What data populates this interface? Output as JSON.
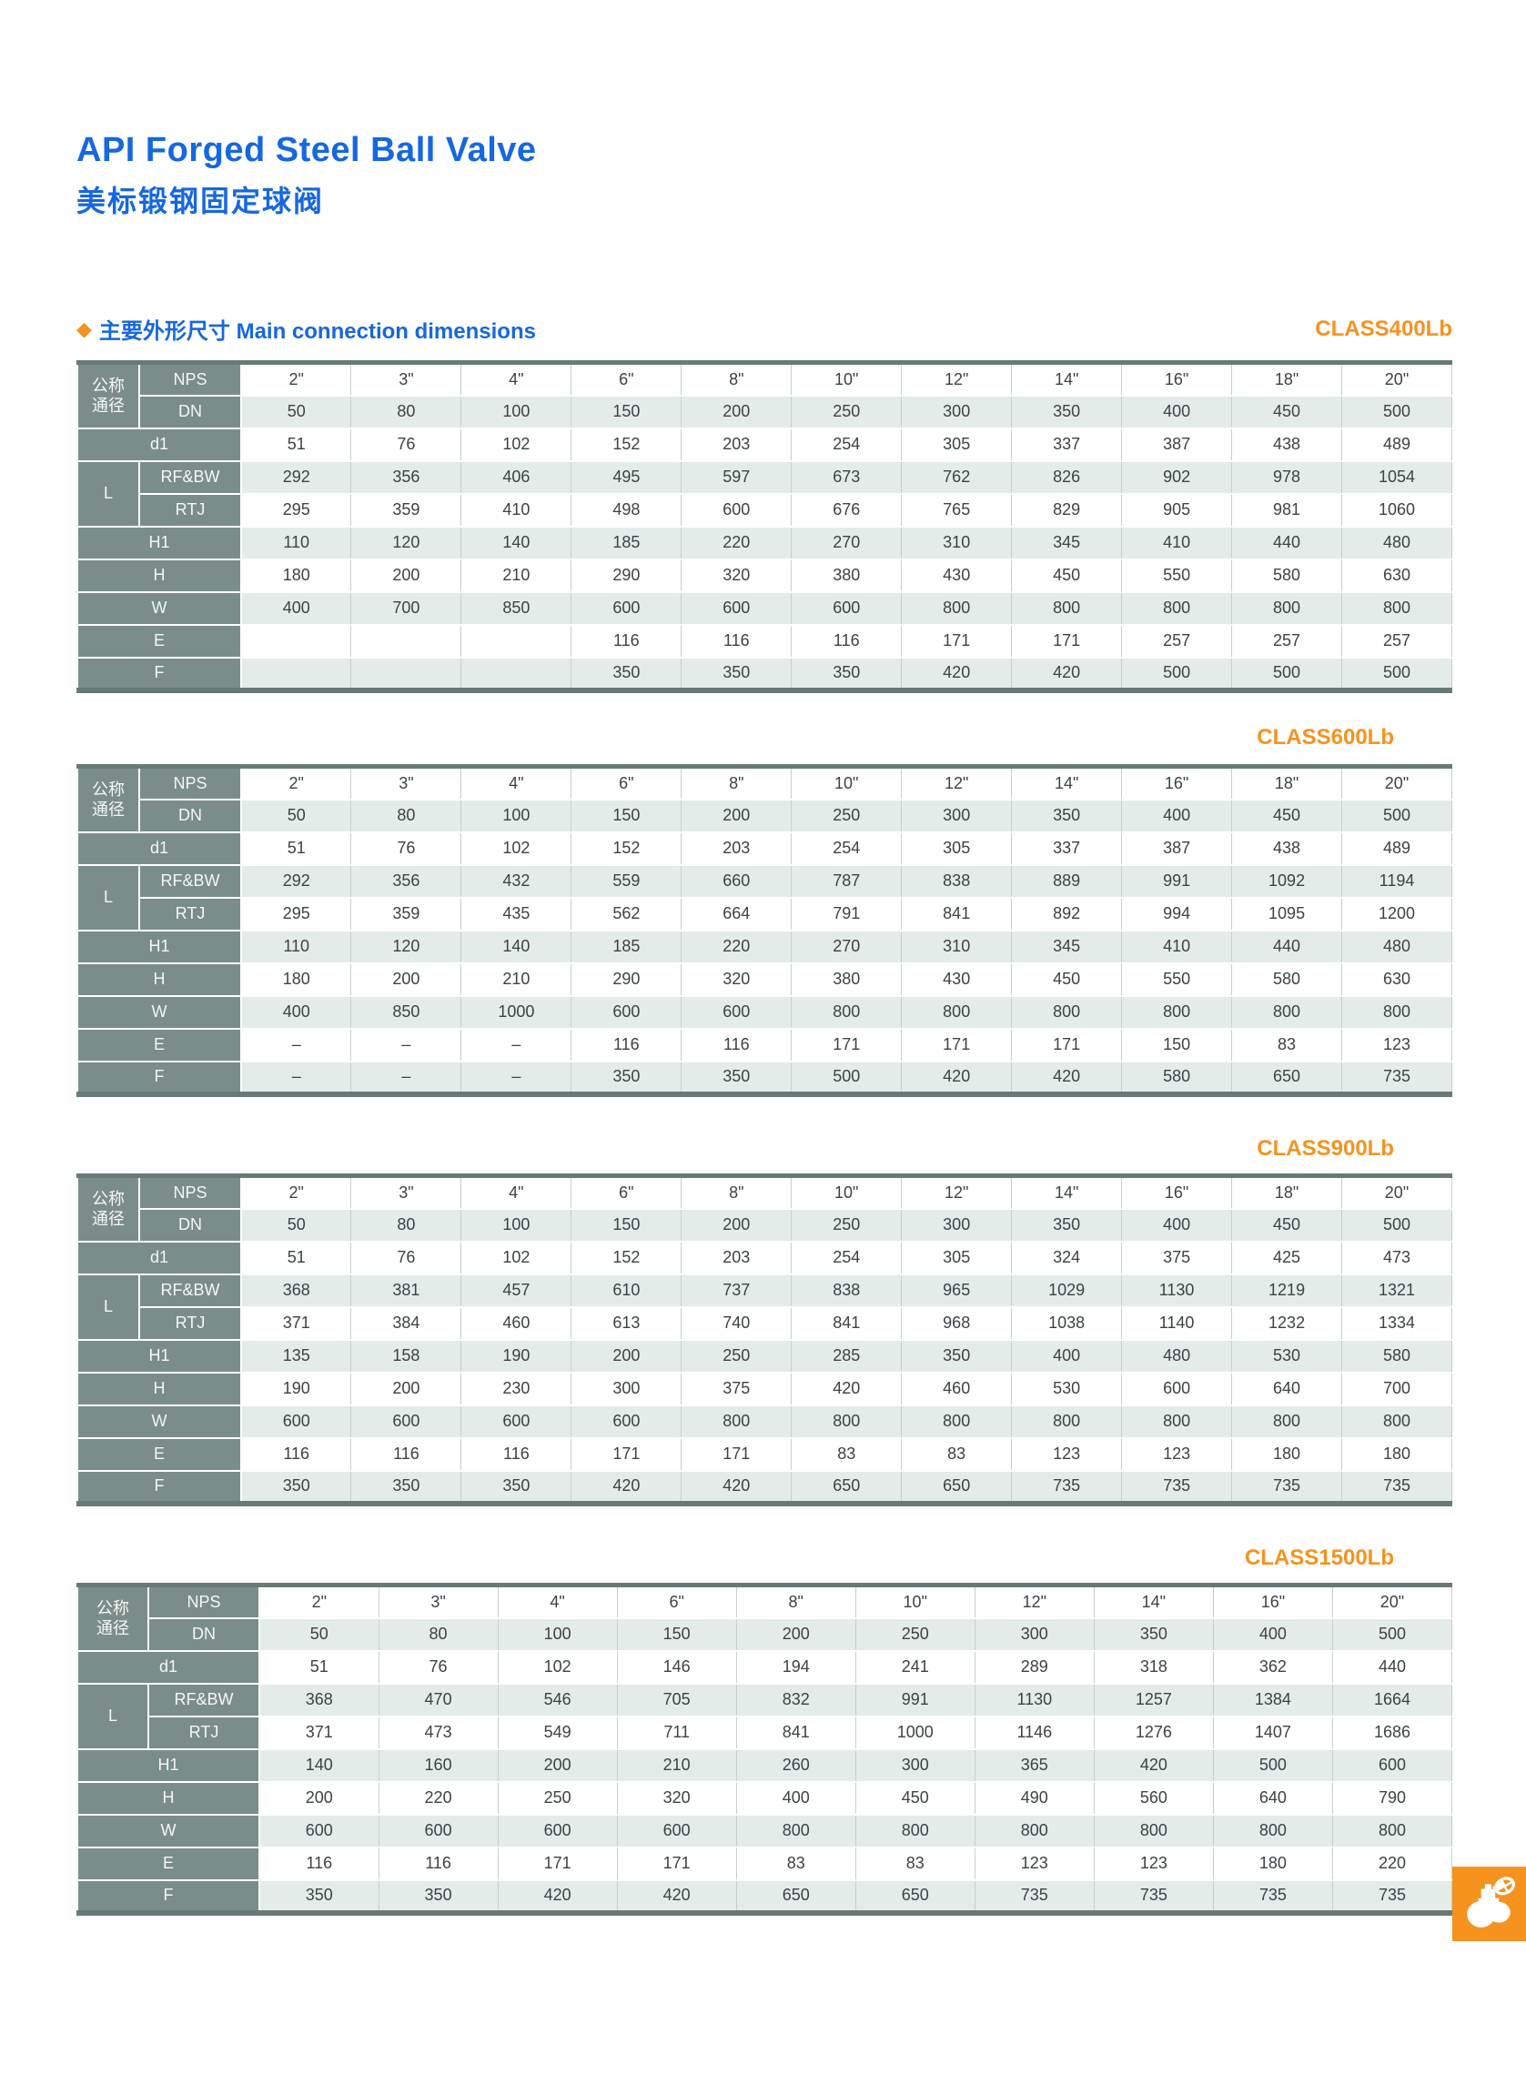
{
  "page": {
    "title_en": "API Forged Steel Ball Valve",
    "title_zh": "美标锻钢固定球阀"
  },
  "section": {
    "bullet": "◆",
    "heading": "主要外形尺寸 Main connection dimensions"
  },
  "row_labels": {
    "size_group": "公称\n通径",
    "nps": "NPS",
    "dn": "DN",
    "d1": "d1",
    "l": "L",
    "rf_bw": "RF&BW",
    "rtj": "RTJ",
    "h1": "H1",
    "h": "H",
    "w": "W",
    "e": "E",
    "f": "F"
  },
  "colors": {
    "accent_blue": "#1567e2",
    "accent_orange": "#f6921e",
    "label_cell": "#7b8d89",
    "row_tint": "#e4ecea",
    "table_edge": "#687a77"
  },
  "icon": {
    "name": "ball-valve-icon"
  },
  "tables": [
    {
      "class_label": "CLASS400Lb",
      "nps": [
        "2\"",
        "3\"",
        "4\"",
        "6\"",
        "8\"",
        "10\"",
        "12\"",
        "14\"",
        "16\"",
        "18\"",
        "20\""
      ],
      "dn": [
        "50",
        "80",
        "100",
        "150",
        "200",
        "250",
        "300",
        "350",
        "400",
        "450",
        "500"
      ],
      "d1": [
        "51",
        "76",
        "102",
        "152",
        "203",
        "254",
        "305",
        "337",
        "387",
        "438",
        "489"
      ],
      "rf_bw": [
        "292",
        "356",
        "406",
        "495",
        "597",
        "673",
        "762",
        "826",
        "902",
        "978",
        "1054"
      ],
      "rtj": [
        "295",
        "359",
        "410",
        "498",
        "600",
        "676",
        "765",
        "829",
        "905",
        "981",
        "1060"
      ],
      "h1": [
        "110",
        "120",
        "140",
        "185",
        "220",
        "270",
        "310",
        "345",
        "410",
        "440",
        "480"
      ],
      "h": [
        "180",
        "200",
        "210",
        "290",
        "320",
        "380",
        "430",
        "450",
        "550",
        "580",
        "630"
      ],
      "w": [
        "400",
        "700",
        "850",
        "600",
        "600",
        "600",
        "800",
        "800",
        "800",
        "800",
        "800"
      ],
      "e": [
        "",
        "",
        "",
        "116",
        "116",
        "116",
        "171",
        "171",
        "257",
        "257",
        "257"
      ],
      "f": [
        "",
        "",
        "",
        "350",
        "350",
        "350",
        "420",
        "420",
        "500",
        "500",
        "500"
      ]
    },
    {
      "class_label": "CLASS600Lb",
      "nps": [
        "2\"",
        "3\"",
        "4\"",
        "6\"",
        "8\"",
        "10\"",
        "12\"",
        "14\"",
        "16\"",
        "18\"",
        "20\""
      ],
      "dn": [
        "50",
        "80",
        "100",
        "150",
        "200",
        "250",
        "300",
        "350",
        "400",
        "450",
        "500"
      ],
      "d1": [
        "51",
        "76",
        "102",
        "152",
        "203",
        "254",
        "305",
        "337",
        "387",
        "438",
        "489"
      ],
      "rf_bw": [
        "292",
        "356",
        "432",
        "559",
        "660",
        "787",
        "838",
        "889",
        "991",
        "1092",
        "1194"
      ],
      "rtj": [
        "295",
        "359",
        "435",
        "562",
        "664",
        "791",
        "841",
        "892",
        "994",
        "1095",
        "1200"
      ],
      "h1": [
        "110",
        "120",
        "140",
        "185",
        "220",
        "270",
        "310",
        "345",
        "410",
        "440",
        "480"
      ],
      "h": [
        "180",
        "200",
        "210",
        "290",
        "320",
        "380",
        "430",
        "450",
        "550",
        "580",
        "630"
      ],
      "w": [
        "400",
        "850",
        "1000",
        "600",
        "600",
        "800",
        "800",
        "800",
        "800",
        "800",
        "800"
      ],
      "e": [
        "–",
        "–",
        "–",
        "116",
        "116",
        "171",
        "171",
        "171",
        "150",
        "83",
        "123"
      ],
      "f": [
        "–",
        "–",
        "–",
        "350",
        "350",
        "500",
        "420",
        "420",
        "580",
        "650",
        "735"
      ]
    },
    {
      "class_label": "CLASS900Lb",
      "nps": [
        "2\"",
        "3\"",
        "4\"",
        "6\"",
        "8\"",
        "10\"",
        "12\"",
        "14\"",
        "16\"",
        "18\"",
        "20\""
      ],
      "dn": [
        "50",
        "80",
        "100",
        "150",
        "200",
        "250",
        "300",
        "350",
        "400",
        "450",
        "500"
      ],
      "d1": [
        "51",
        "76",
        "102",
        "152",
        "203",
        "254",
        "305",
        "324",
        "375",
        "425",
        "473"
      ],
      "rf_bw": [
        "368",
        "381",
        "457",
        "610",
        "737",
        "838",
        "965",
        "1029",
        "1130",
        "1219",
        "1321"
      ],
      "rtj": [
        "371",
        "384",
        "460",
        "613",
        "740",
        "841",
        "968",
        "1038",
        "1140",
        "1232",
        "1334"
      ],
      "h1": [
        "135",
        "158",
        "190",
        "200",
        "250",
        "285",
        "350",
        "400",
        "480",
        "530",
        "580"
      ],
      "h": [
        "190",
        "200",
        "230",
        "300",
        "375",
        "420",
        "460",
        "530",
        "600",
        "640",
        "700"
      ],
      "w": [
        "600",
        "600",
        "600",
        "600",
        "800",
        "800",
        "800",
        "800",
        "800",
        "800",
        "800"
      ],
      "e": [
        "116",
        "116",
        "116",
        "171",
        "171",
        "83",
        "83",
        "123",
        "123",
        "180",
        "180"
      ],
      "f": [
        "350",
        "350",
        "350",
        "420",
        "420",
        "650",
        "650",
        "735",
        "735",
        "735",
        "735"
      ]
    },
    {
      "class_label": "CLASS1500Lb",
      "nps": [
        "2\"",
        "3\"",
        "4\"",
        "6\"",
        "8\"",
        "10\"",
        "12\"",
        "14\"",
        "16\"",
        "20\""
      ],
      "dn": [
        "50",
        "80",
        "100",
        "150",
        "200",
        "250",
        "300",
        "350",
        "400",
        "500"
      ],
      "d1": [
        "51",
        "76",
        "102",
        "146",
        "194",
        "241",
        "289",
        "318",
        "362",
        "440"
      ],
      "rf_bw": [
        "368",
        "470",
        "546",
        "705",
        "832",
        "991",
        "1130",
        "1257",
        "1384",
        "1664"
      ],
      "rtj": [
        "371",
        "473",
        "549",
        "711",
        "841",
        "1000",
        "1146",
        "1276",
        "1407",
        "1686"
      ],
      "h1": [
        "140",
        "160",
        "200",
        "210",
        "260",
        "300",
        "365",
        "420",
        "500",
        "600"
      ],
      "h": [
        "200",
        "220",
        "250",
        "320",
        "400",
        "450",
        "490",
        "560",
        "640",
        "790"
      ],
      "w": [
        "600",
        "600",
        "600",
        "600",
        "800",
        "800",
        "800",
        "800",
        "800",
        "800"
      ],
      "e": [
        "116",
        "116",
        "171",
        "171",
        "83",
        "83",
        "123",
        "123",
        "180",
        "220"
      ],
      "f": [
        "350",
        "350",
        "420",
        "420",
        "650",
        "650",
        "735",
        "735",
        "735",
        "735"
      ]
    }
  ]
}
